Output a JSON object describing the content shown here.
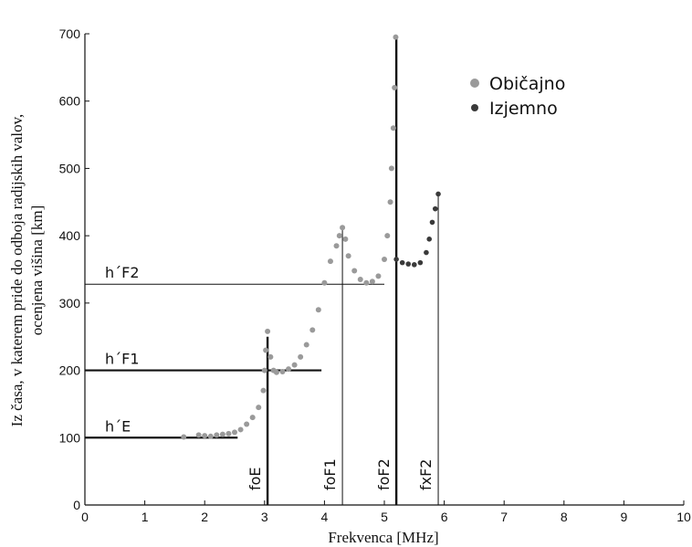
{
  "chart_data": {
    "type": "scatter",
    "xlabel": "Frekvenca [MHz]",
    "ylabel_lines": [
      "Iz časa, v katerem pride do odboja radijskih valov,",
      "ocenjena višina [km]"
    ],
    "xlim": [
      0,
      10
    ],
    "ylim": [
      0,
      700
    ],
    "xticks": [
      "0",
      "1",
      "2",
      "3",
      "4",
      "5",
      "6",
      "7",
      "8",
      "9",
      "10"
    ],
    "yticks": [
      "0",
      "100",
      "200",
      "300",
      "400",
      "500",
      "600",
      "700"
    ],
    "grid": false,
    "legend_position": "top-right",
    "series": [
      {
        "name": "Običajno",
        "color": "#9a9a9a",
        "points": [
          [
            1.65,
            101
          ],
          [
            1.9,
            104
          ],
          [
            2.0,
            103
          ],
          [
            2.1,
            102
          ],
          [
            2.2,
            104
          ],
          [
            2.3,
            105
          ],
          [
            2.4,
            106
          ],
          [
            2.5,
            108
          ],
          [
            2.6,
            112
          ],
          [
            2.7,
            120
          ],
          [
            2.8,
            130
          ],
          [
            2.9,
            145
          ],
          [
            2.98,
            170
          ],
          [
            3.0,
            200
          ],
          [
            3.02,
            230
          ],
          [
            3.05,
            258
          ],
          [
            3.1,
            220
          ],
          [
            3.15,
            200
          ],
          [
            3.2,
            197
          ],
          [
            3.3,
            198
          ],
          [
            3.4,
            202
          ],
          [
            3.5,
            208
          ],
          [
            3.6,
            220
          ],
          [
            3.7,
            238
          ],
          [
            3.8,
            260
          ],
          [
            3.9,
            290
          ],
          [
            4.0,
            330
          ],
          [
            4.1,
            362
          ],
          [
            4.2,
            385
          ],
          [
            4.25,
            400
          ],
          [
            4.3,
            412
          ],
          [
            4.35,
            395
          ],
          [
            4.4,
            370
          ],
          [
            4.5,
            348
          ],
          [
            4.6,
            335
          ],
          [
            4.7,
            330
          ],
          [
            4.8,
            332
          ],
          [
            4.9,
            340
          ],
          [
            5.0,
            365
          ],
          [
            5.05,
            400
          ],
          [
            5.1,
            450
          ],
          [
            5.12,
            500
          ],
          [
            5.15,
            560
          ],
          [
            5.17,
            620
          ],
          [
            5.19,
            695
          ]
        ]
      },
      {
        "name": "Izjemno",
        "color": "#3a3a3a",
        "points": [
          [
            5.2,
            365
          ],
          [
            5.3,
            360
          ],
          [
            5.4,
            358
          ],
          [
            5.5,
            357
          ],
          [
            5.6,
            360
          ],
          [
            5.7,
            375
          ],
          [
            5.75,
            395
          ],
          [
            5.8,
            420
          ],
          [
            5.85,
            440
          ],
          [
            5.9,
            462
          ]
        ]
      }
    ],
    "annotations": [
      {
        "label": "h´E",
        "y": 100,
        "x_end": 2.55
      },
      {
        "label": "h´F1",
        "y": 200,
        "x_end": 3.95
      },
      {
        "label": "h´F2",
        "y": 328,
        "x_end": 5.0
      }
    ],
    "critical_frequencies": [
      {
        "label": "foE",
        "x": 3.05,
        "y_top": 250
      },
      {
        "label": "foF1",
        "x": 4.3,
        "y_top": 412
      },
      {
        "label": "foF2",
        "x": 5.2,
        "y_top": 695
      },
      {
        "label": "fxF2",
        "x": 5.9,
        "y_top": 462
      }
    ]
  }
}
